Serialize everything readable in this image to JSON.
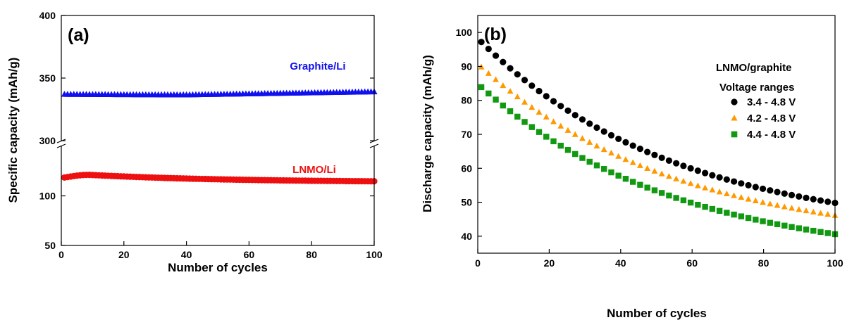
{
  "chart_data": [
    {
      "type": "scatter",
      "panel_label": "(a)",
      "xlabel": "Number of cycles",
      "ylabel": "Specific capacity (mAh/g)",
      "xlim": [
        0,
        100
      ],
      "x_ticks": [
        "0",
        "20",
        "40",
        "60",
        "80",
        "100"
      ],
      "y_axis_break": true,
      "y_segments": [
        {
          "range": [
            300,
            400
          ],
          "ticks": [
            "300",
            "350",
            "400"
          ]
        },
        {
          "range": [
            50,
            150
          ],
          "ticks": [
            "50",
            "100"
          ]
        }
      ],
      "annotations": [
        {
          "text": "Graphite/Li",
          "color": "#1010ee"
        },
        {
          "text": "LNMO/Li",
          "color": "#ee1010"
        }
      ],
      "series": [
        {
          "marker": "triangle",
          "color": "#1010ee",
          "x": [
            1,
            100
          ],
          "y_start": 337,
          "y_min": 336.6,
          "y_end": 338.6,
          "points": 100
        },
        {
          "marker": "circle",
          "color": "#ee1010",
          "x": [
            1,
            100
          ],
          "y_start": 118.5,
          "y_peak": 121.2,
          "y_end": 114.7,
          "points": 100
        }
      ]
    },
    {
      "type": "scatter",
      "panel_label": "(b)",
      "xlabel": "Number of cycles",
      "ylabel": "Discharge capacity (mAh/g)",
      "xlim": [
        0,
        100
      ],
      "ylim": [
        35,
        105
      ],
      "x_ticks": [
        "0",
        "20",
        "40",
        "60",
        "80",
        "100"
      ],
      "y_ticks": [
        "40",
        "50",
        "60",
        "70",
        "80",
        "90",
        "100"
      ],
      "legend_title_1": "LNMO/graphite",
      "legend_title_2": "Voltage ranges",
      "legend_position": "top-right",
      "series": [
        {
          "name": "3.4 - 4.8 V",
          "marker": "circle",
          "color": "#000000",
          "x": [
            1,
            100
          ],
          "y_start": 97.2,
          "y_end": 49.8,
          "points": 50
        },
        {
          "name": "4.2 - 4.8 V",
          "marker": "triangle",
          "color": "#ff9900",
          "x": [
            1,
            100
          ],
          "y_start": 89.8,
          "y_end": 46.1,
          "points": 50
        },
        {
          "name": "4.4 - 4.8 V",
          "marker": "square",
          "color": "#119911",
          "x": [
            1,
            100
          ],
          "y_start": 83.9,
          "y_end": 40.6,
          "points": 50
        }
      ]
    }
  ]
}
